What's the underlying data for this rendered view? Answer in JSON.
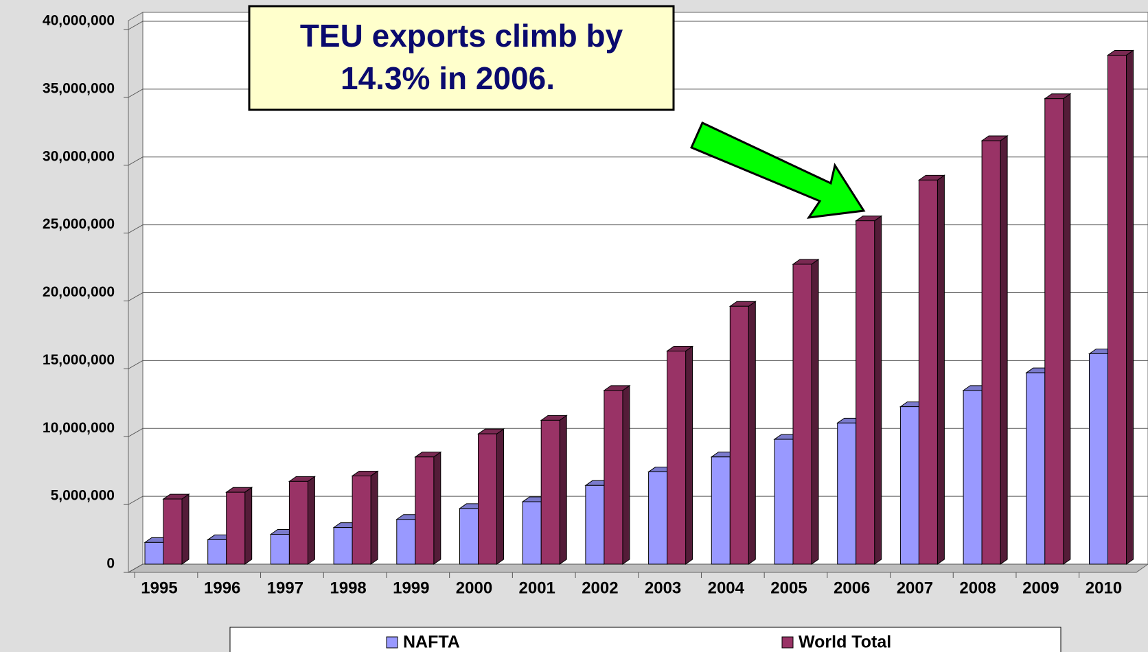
{
  "chart_data": {
    "type": "bar",
    "annotation": [
      "TEU exports climb by",
      "14.3% in 2006."
    ],
    "categories": [
      "1995",
      "1996",
      "1997",
      "1998",
      "1999",
      "2000",
      "2001",
      "2002",
      "2003",
      "2004",
      "2005",
      "2006",
      "2007",
      "2008",
      "2009",
      "2010"
    ],
    "series": [
      {
        "name": "NAFTA",
        "color": "#9999ff",
        "values": [
          1600000,
          1800000,
          2200000,
          2700000,
          3300000,
          4100000,
          4600000,
          5800000,
          6800000,
          7900000,
          9200000,
          10400000,
          11600000,
          12800000,
          14100000,
          15500000
        ]
      },
      {
        "name": "World Total",
        "color": "#993366",
        "values": [
          4800000,
          5300000,
          6100000,
          6500000,
          7900000,
          9600000,
          10600000,
          12800000,
          15700000,
          19000000,
          22100000,
          25300000,
          28300000,
          31200000,
          34300000,
          37500000
        ]
      }
    ],
    "ylim": [
      0,
      40000000
    ],
    "yticks": [
      0,
      {
        "value": 5000000,
        "label": "5,000,000"
      },
      {
        "value": 10000000,
        "label": "10,000,000"
      },
      {
        "value": 15000000,
        "label": "15,000,000"
      },
      {
        "value": 20000000,
        "label": "20,000,000"
      },
      {
        "value": 25000000,
        "label": "25,000,000"
      },
      {
        "value": 30000000,
        "label": "30,000,000"
      },
      {
        "value": 35000000,
        "label": "35,000,000"
      },
      {
        "value": 40000000,
        "label": "40,000,000"
      }
    ],
    "grid": true,
    "legend": "bottom"
  }
}
